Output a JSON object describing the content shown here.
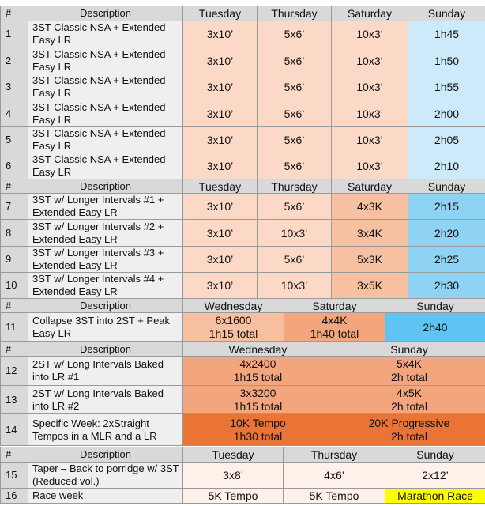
{
  "headers": {
    "num": "#",
    "desc": "Description",
    "tue": "Tuesday",
    "thu": "Thursday",
    "sat": "Saturday",
    "sun": "Sunday",
    "wed": "Wednesday"
  },
  "block1": [
    {
      "n": "1",
      "desc": "3ST Classic NSA + Extended Easy LR",
      "tue": "3x10’",
      "thu": "5x6’",
      "sat": "10x3’",
      "sun": "1h45"
    },
    {
      "n": "2",
      "desc": "3ST Classic NSA + Extended Easy LR",
      "tue": "3x10’",
      "thu": "5x6’",
      "sat": "10x3’",
      "sun": "1h50"
    },
    {
      "n": "3",
      "desc": "3ST Classic NSA + Extended Easy LR",
      "tue": "3x10’",
      "thu": "5x6’",
      "sat": "10x3’",
      "sun": "1h55"
    },
    {
      "n": "4",
      "desc": "3ST Classic NSA + Extended Easy LR",
      "tue": "3x10’",
      "thu": "5x6’",
      "sat": "10x3’",
      "sun": "2h00"
    },
    {
      "n": "5",
      "desc": "3ST Classic NSA + Extended Easy LR",
      "tue": "3x10’",
      "thu": "5x6’",
      "sat": "10x3’",
      "sun": "2h05"
    },
    {
      "n": "6",
      "desc": "3ST Classic NSA + Extended Easy LR",
      "tue": "3x10’",
      "thu": "5x6’",
      "sat": "10x3’",
      "sun": "2h10"
    }
  ],
  "block2": [
    {
      "n": "7",
      "desc": "3ST w/ Longer Intervals #1 + Extended Easy LR",
      "tue": "3x10’",
      "thu": "5x6’",
      "sat": "4x3K",
      "sun": "2h15"
    },
    {
      "n": "8",
      "desc": "3ST w/ Longer Intervals #2 + Extended Easy LR",
      "tue": "3x10’",
      "thu": "10x3’",
      "sat": "3x4K",
      "sun": "2h20"
    },
    {
      "n": "9",
      "desc": "3ST w/ Longer Intervals #3 + Extended Easy LR",
      "tue": "3x10’",
      "thu": "5x6’",
      "sat": "5x3K",
      "sun": "2h25"
    },
    {
      "n": "10",
      "desc": "3ST w/ Longer Intervals #4 + Extended Easy LR",
      "tue": "3x10’",
      "thu": "10x3’",
      "sat": "3x5K",
      "sun": "2h30"
    }
  ],
  "block3": {
    "n": "11",
    "desc": "Collapse 3ST into 2ST + Peak Easy LR",
    "wed1": "6x1600",
    "wed2": "1h15 total",
    "sat1": "4x4K",
    "sat2": "1h40 total",
    "sun": "2h40"
  },
  "block4": [
    {
      "n": "12",
      "desc": "2ST w/ Long Intervals Baked into LR #1",
      "wed1": "4x2400",
      "wed2": "1h15 total",
      "sun1": "5x4K",
      "sun2": "2h total"
    },
    {
      "n": "13",
      "desc": "2ST w/ Long Intervals Baked into LR #2",
      "wed1": "3x3200",
      "wed2": "1h15 total",
      "sun1": "4x5K",
      "sun2": "2h total"
    },
    {
      "n": "14",
      "desc": "Specific Week: 2xStraight Tempos in a MLR and a LR",
      "wed1": "10K Tempo",
      "wed2": "1h30 total",
      "sun1": "20K Progressive",
      "sun2": "2h total"
    }
  ],
  "block5": [
    {
      "n": "15",
      "desc": "Taper – Back to porridge w/ 3ST (Reduced vol.)",
      "tue": "3x8’",
      "thu": "4x6’",
      "sun": "2x12’"
    },
    {
      "n": "16",
      "desc": "Race week",
      "tue": "5K Tempo",
      "thu": "5K Tempo",
      "sun": "Marathon Race"
    }
  ]
}
